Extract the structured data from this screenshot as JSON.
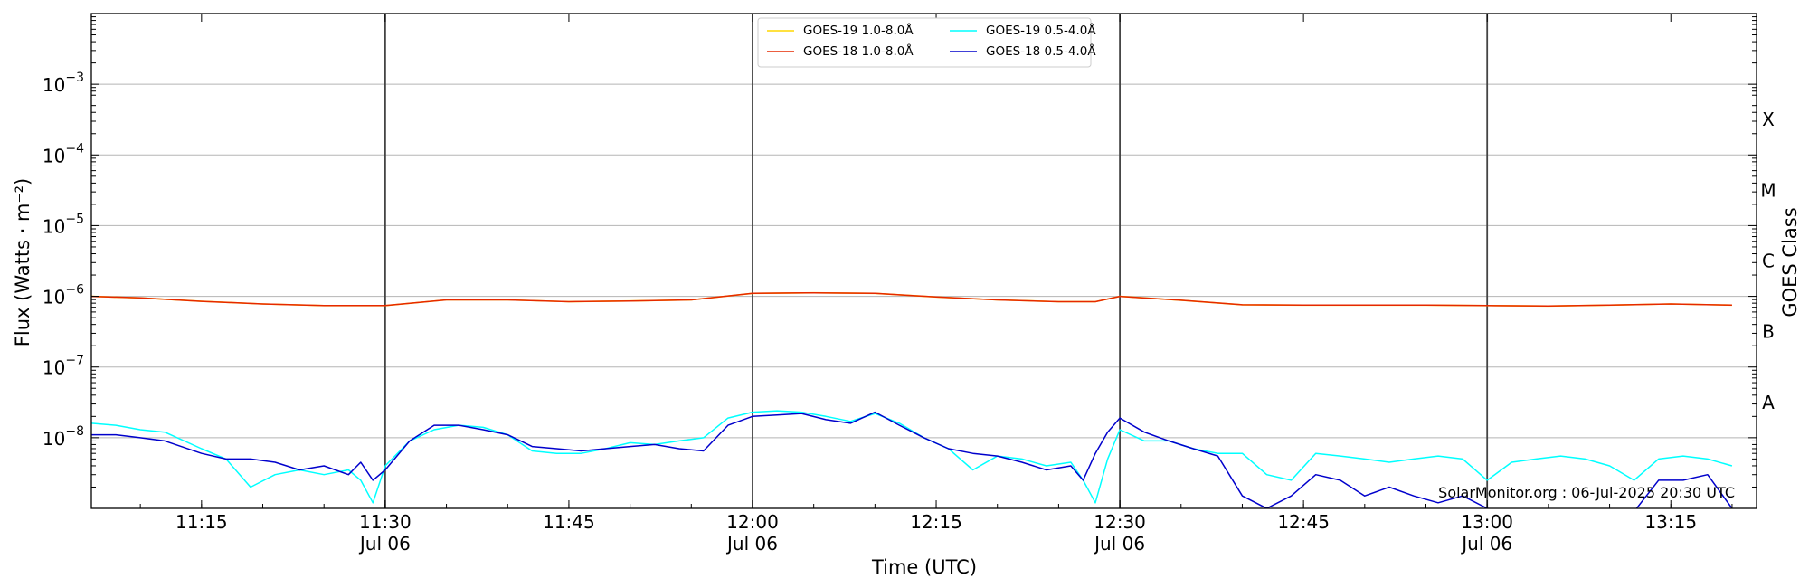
{
  "chart_data": {
    "type": "line",
    "x_axis": {
      "label": "Time (UTC)",
      "range": [
        "11:06",
        "13:22"
      ],
      "ticks": [
        {
          "time": "11:15",
          "label": "11:15",
          "sublabel": ""
        },
        {
          "time": "11:30",
          "label": "11:30",
          "sublabel": "Jul 06"
        },
        {
          "time": "11:45",
          "label": "11:45",
          "sublabel": ""
        },
        {
          "time": "12:00",
          "label": "12:00",
          "sublabel": "Jul 06"
        },
        {
          "time": "12:15",
          "label": "12:15",
          "sublabel": ""
        },
        {
          "time": "12:30",
          "label": "12:30",
          "sublabel": "Jul 06"
        },
        {
          "time": "12:45",
          "label": "12:45",
          "sublabel": ""
        },
        {
          "time": "13:00",
          "label": "13:00",
          "sublabel": "Jul 06"
        },
        {
          "time": "13:15",
          "label": "13:15",
          "sublabel": ""
        }
      ],
      "vertical_markers": [
        "11:30",
        "12:00",
        "12:30",
        "13:00"
      ]
    },
    "y_axis": {
      "label": "Flux (Watts · m⁻²)",
      "scale": "log",
      "range": [
        1e-09,
        0.01
      ],
      "ticks": [
        {
          "value": 1e-08,
          "base": "10",
          "exp": "−8"
        },
        {
          "value": 1e-07,
          "base": "10",
          "exp": "−7"
        },
        {
          "value": 1e-06,
          "base": "10",
          "exp": "−6"
        },
        {
          "value": 1e-05,
          "base": "10",
          "exp": "−5"
        },
        {
          "value": 0.0001,
          "base": "10",
          "exp": "−4"
        },
        {
          "value": 0.001,
          "base": "10",
          "exp": "−3"
        }
      ],
      "grid": true
    },
    "right_axis": {
      "label": "GOES Class",
      "classes": [
        {
          "name": "A",
          "value": 1e-08
        },
        {
          "name": "B",
          "value": 1e-07
        },
        {
          "name": "C",
          "value": 1e-06
        },
        {
          "name": "M",
          "value": 1e-05
        },
        {
          "name": "X",
          "value": 0.0001
        }
      ]
    },
    "legend": {
      "placement": "top-center",
      "entries": [
        {
          "name": "GOES-19 1.0-8.0Å",
          "color": "#ffd700"
        },
        {
          "name": "GOES-18 1.0-8.0Å",
          "color": "#e62800"
        },
        {
          "name": "GOES-19 0.5-4.0Å",
          "color": "#00ffff"
        },
        {
          "name": "GOES-18 0.5-4.0Å",
          "color": "#0000cc"
        }
      ]
    },
    "series": [
      {
        "name": "GOES-19 1.0-8.0Å",
        "color": "#ffd700",
        "time": [
          "11:06",
          "11:10",
          "11:15",
          "11:20",
          "11:25",
          "11:30",
          "11:35",
          "11:40",
          "11:45",
          "11:50",
          "11:55",
          "12:00",
          "12:05",
          "12:10",
          "12:15",
          "12:20",
          "12:25",
          "12:28",
          "12:30",
          "12:35",
          "12:40",
          "12:45",
          "12:50",
          "12:55",
          "13:00",
          "13:05",
          "13:10",
          "13:15",
          "13:20"
        ],
        "values": [
          1e-06,
          9.5e-07,
          8.5e-07,
          7.8e-07,
          7.4e-07,
          7.4e-07,
          8.9e-07,
          8.9e-07,
          8.4e-07,
          8.6e-07,
          8.9e-07,
          1.1e-06,
          1.12e-06,
          1.1e-06,
          9.8e-07,
          8.9e-07,
          8.4e-07,
          8.4e-07,
          1e-06,
          8.8e-07,
          7.6e-07,
          7.5e-07,
          7.5e-07,
          7.5e-07,
          7.4e-07,
          7.3e-07,
          7.5e-07,
          7.8e-07,
          7.5e-07
        ]
      },
      {
        "name": "GOES-18 1.0-8.0Å",
        "color": "#e62800",
        "time": [
          "11:06",
          "11:10",
          "11:15",
          "11:20",
          "11:25",
          "11:30",
          "11:35",
          "11:40",
          "11:45",
          "11:50",
          "11:55",
          "12:00",
          "12:05",
          "12:10",
          "12:15",
          "12:20",
          "12:25",
          "12:28",
          "12:30",
          "12:35",
          "12:40",
          "12:45",
          "12:50",
          "12:55",
          "13:00",
          "13:05",
          "13:10",
          "13:15",
          "13:20"
        ],
        "values": [
          1e-06,
          9.5e-07,
          8.5e-07,
          7.8e-07,
          7.4e-07,
          7.4e-07,
          8.9e-07,
          8.9e-07,
          8.4e-07,
          8.6e-07,
          8.9e-07,
          1.1e-06,
          1.12e-06,
          1.1e-06,
          9.8e-07,
          8.9e-07,
          8.4e-07,
          8.4e-07,
          1e-06,
          8.8e-07,
          7.6e-07,
          7.5e-07,
          7.5e-07,
          7.5e-07,
          7.4e-07,
          7.3e-07,
          7.5e-07,
          7.8e-07,
          7.5e-07
        ]
      },
      {
        "name": "GOES-19 0.5-4.0Å",
        "color": "#00ffff",
        "time": [
          "11:06",
          "11:08",
          "11:10",
          "11:12",
          "11:15",
          "11:17",
          "11:19",
          "11:21",
          "11:23",
          "11:25",
          "11:27",
          "11:28",
          "11:29",
          "11:30",
          "11:32",
          "11:34",
          "11:36",
          "11:38",
          "11:40",
          "11:42",
          "11:44",
          "11:46",
          "11:48",
          "11:50",
          "11:52",
          "11:54",
          "11:56",
          "11:58",
          "12:00",
          "12:02",
          "12:04",
          "12:06",
          "12:08",
          "12:10",
          "12:12",
          "12:14",
          "12:16",
          "12:18",
          "12:20",
          "12:22",
          "12:24",
          "12:26",
          "12:27",
          "12:28",
          "12:29",
          "12:30",
          "12:32",
          "12:34",
          "12:36",
          "12:38",
          "12:40",
          "12:42",
          "12:44",
          "12:46",
          "12:48",
          "12:50",
          "12:52",
          "12:54",
          "12:56",
          "12:58",
          "13:00",
          "13:02",
          "13:04",
          "13:06",
          "13:08",
          "13:10",
          "13:12",
          "13:14",
          "13:16",
          "13:18",
          "13:20"
        ],
        "values": [
          1.6e-08,
          1.5e-08,
          1.3e-08,
          1.2e-08,
          7e-09,
          5e-09,
          2e-09,
          3e-09,
          3.5e-09,
          3e-09,
          3.5e-09,
          2.5e-09,
          1.2e-09,
          4e-09,
          9e-09,
          1.3e-08,
          1.5e-08,
          1.4e-08,
          1.1e-08,
          6.5e-09,
          6e-09,
          6e-09,
          7e-09,
          8.5e-09,
          8e-09,
          9e-09,
          1e-08,
          1.9e-08,
          2.3e-08,
          2.4e-08,
          2.3e-08,
          2e-08,
          1.7e-08,
          2.2e-08,
          1.6e-08,
          1e-08,
          7e-09,
          3.5e-09,
          5.5e-09,
          5e-09,
          4e-09,
          4.5e-09,
          2.5e-09,
          1.2e-09,
          5e-09,
          1.3e-08,
          9e-09,
          9e-09,
          7e-09,
          6e-09,
          6e-09,
          3e-09,
          2.5e-09,
          6e-09,
          5.5e-09,
          5e-09,
          4.5e-09,
          5e-09,
          5.5e-09,
          5e-09,
          2.5e-09,
          4.5e-09,
          5e-09,
          5.5e-09,
          5e-09,
          4e-09,
          2.5e-09,
          5e-09,
          5.5e-09,
          5e-09,
          4e-09
        ]
      },
      {
        "name": "GOES-18 0.5-4.0Å",
        "color": "#0000cc",
        "time": [
          "11:06",
          "11:08",
          "11:10",
          "11:12",
          "11:15",
          "11:17",
          "11:19",
          "11:21",
          "11:23",
          "11:25",
          "11:27",
          "11:28",
          "11:29",
          "11:30",
          "11:32",
          "11:34",
          "11:36",
          "11:38",
          "11:40",
          "11:42",
          "11:44",
          "11:46",
          "11:48",
          "11:50",
          "11:52",
          "11:54",
          "11:56",
          "11:58",
          "12:00",
          "12:02",
          "12:04",
          "12:06",
          "12:08",
          "12:10",
          "12:12",
          "12:14",
          "12:16",
          "12:18",
          "12:20",
          "12:22",
          "12:24",
          "12:26",
          "12:27",
          "12:28",
          "12:29",
          "12:30",
          "12:32",
          "12:34",
          "12:36",
          "12:38",
          "12:40",
          "12:42",
          "12:44",
          "12:46",
          "12:48",
          "12:50",
          "12:52",
          "12:54",
          "12:56",
          "12:58",
          "13:00",
          "13:02",
          "13:04",
          "13:06",
          "13:08",
          "13:10",
          "13:12",
          "13:14",
          "13:16",
          "13:18",
          "13:20"
        ],
        "values": [
          1.1e-08,
          1.1e-08,
          1e-08,
          9e-09,
          6e-09,
          5e-09,
          5e-09,
          4.5e-09,
          3.5e-09,
          4e-09,
          3e-09,
          4.5e-09,
          2.5e-09,
          3.5e-09,
          9e-09,
          1.5e-08,
          1.5e-08,
          1.3e-08,
          1.1e-08,
          7.5e-09,
          7e-09,
          6.5e-09,
          7e-09,
          7.5e-09,
          8e-09,
          7e-09,
          6.5e-09,
          1.5e-08,
          2e-08,
          2.1e-08,
          2.2e-08,
          1.8e-08,
          1.6e-08,
          2.3e-08,
          1.5e-08,
          1e-08,
          7e-09,
          6e-09,
          5.5e-09,
          4.5e-09,
          3.5e-09,
          4e-09,
          2.5e-09,
          6e-09,
          1.2e-08,
          1.9e-08,
          1.2e-08,
          9e-09,
          7e-09,
          5.5e-09,
          1.5e-09,
          1e-09,
          1.5e-09,
          3e-09,
          2.5e-09,
          1.5e-09,
          2e-09,
          1.5e-09,
          1.2e-09,
          1.5e-09,
          1e-09,
          9e-10,
          9e-10,
          9e-10,
          9e-10,
          9e-10,
          9e-10,
          2.5e-09,
          2.5e-09,
          3e-09,
          1e-09
        ]
      }
    ],
    "annotation": "SolarMonitor.org : 06-Jul-2025 20:30 UTC"
  }
}
